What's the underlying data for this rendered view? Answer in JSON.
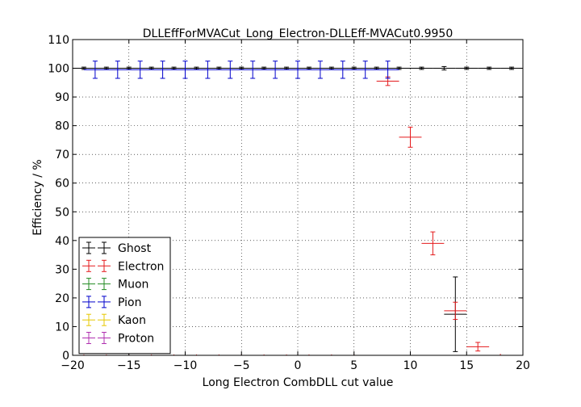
{
  "chart_data": {
    "type": "scatter",
    "title": "DLLEffForMVACut_Long_Electron-DLLEff-MVACut0.9950",
    "xlabel": "Long Electron CombDLL cut value",
    "ylabel": "Efficiency / %",
    "xlim": [
      -20,
      20
    ],
    "ylim": [
      0,
      110
    ],
    "xticks": [
      -20,
      -15,
      -10,
      -5,
      0,
      5,
      10,
      15,
      20
    ],
    "yticks": [
      0,
      10,
      20,
      30,
      40,
      50,
      60,
      70,
      80,
      90,
      100,
      110
    ],
    "grid": true,
    "legend_position": "lower-left",
    "series": [
      {
        "name": "Ghost",
        "color": "#000000",
        "points": [
          {
            "x": -19,
            "y": 100,
            "xerr": 1,
            "yerr": 0.4
          },
          {
            "x": -17,
            "y": 100,
            "xerr": 1,
            "yerr": 0.4
          },
          {
            "x": -15,
            "y": 100,
            "xerr": 1,
            "yerr": 0.4
          },
          {
            "x": -13,
            "y": 100,
            "xerr": 1,
            "yerr": 0.4
          },
          {
            "x": -11,
            "y": 100,
            "xerr": 1,
            "yerr": 0.4
          },
          {
            "x": -9,
            "y": 100,
            "xerr": 1,
            "yerr": 0.4
          },
          {
            "x": -7,
            "y": 100,
            "xerr": 1,
            "yerr": 0.4
          },
          {
            "x": -5,
            "y": 100,
            "xerr": 1,
            "yerr": 0.4
          },
          {
            "x": -3,
            "y": 100,
            "xerr": 1,
            "yerr": 0.4
          },
          {
            "x": -1,
            "y": 100,
            "xerr": 1,
            "yerr": 0.4
          },
          {
            "x": 1,
            "y": 100,
            "xerr": 1,
            "yerr": 0.4
          },
          {
            "x": 3,
            "y": 100,
            "xerr": 1,
            "yerr": 0.4
          },
          {
            "x": 5,
            "y": 100,
            "xerr": 1,
            "yerr": 0.4
          },
          {
            "x": 7,
            "y": 100,
            "xerr": 1,
            "yerr": 0.4
          },
          {
            "x": 9,
            "y": 100,
            "xerr": 1,
            "yerr": 0.4
          },
          {
            "x": 11,
            "y": 100,
            "xerr": 1,
            "yerr": 0.4
          },
          {
            "x": 13,
            "y": 100,
            "xerr": 1,
            "yerr": 0.6
          },
          {
            "x": 15,
            "y": 100,
            "xerr": 1,
            "yerr": 0.4
          },
          {
            "x": 17,
            "y": 100,
            "xerr": 1,
            "yerr": 0.4
          },
          {
            "x": 19,
            "y": 100,
            "xerr": 1,
            "yerr": 0.4
          },
          {
            "x": 14,
            "y": 14.3,
            "xerr": 1,
            "yerr": 13
          }
        ]
      },
      {
        "name": "Electron",
        "color": "#e41a1c",
        "points": [
          {
            "x": 8,
            "y": 95.5,
            "xerr": 1,
            "yerr": 1.5
          },
          {
            "x": 10,
            "y": 76,
            "xerr": 1,
            "yerr": 3.5
          },
          {
            "x": 12,
            "y": 39,
            "xerr": 1,
            "yerr": 4
          },
          {
            "x": 14,
            "y": 15.5,
            "xerr": 1,
            "yerr": 3
          },
          {
            "x": 16,
            "y": 3,
            "xerr": 1,
            "yerr": 1.5
          },
          {
            "x": 18,
            "y": 0,
            "xerr": 1,
            "yerr": 0.5
          },
          {
            "x": 20,
            "y": 0,
            "xerr": 1,
            "yerr": 0.5
          },
          {
            "x": -19,
            "y": 0,
            "xerr": 1,
            "yerr": 0.3
          },
          {
            "x": -17,
            "y": 0,
            "xerr": 1,
            "yerr": 0.3
          },
          {
            "x": -15,
            "y": 0,
            "xerr": 1,
            "yerr": 0.3
          },
          {
            "x": -13,
            "y": 0,
            "xerr": 1,
            "yerr": 0.3
          },
          {
            "x": -11,
            "y": 0,
            "xerr": 1,
            "yerr": 0.3
          },
          {
            "x": -9,
            "y": 0,
            "xerr": 1,
            "yerr": 0.3
          },
          {
            "x": -7,
            "y": 0,
            "xerr": 1,
            "yerr": 0.3
          },
          {
            "x": -5,
            "y": 0,
            "xerr": 1,
            "yerr": 0.3
          },
          {
            "x": -3,
            "y": 0,
            "xerr": 1,
            "yerr": 0.3
          },
          {
            "x": -1,
            "y": 0,
            "xerr": 1,
            "yerr": 0.3
          },
          {
            "x": 1,
            "y": 0,
            "xerr": 1,
            "yerr": 0.3
          },
          {
            "x": 3,
            "y": 0,
            "xerr": 1,
            "yerr": 0.3
          },
          {
            "x": 5,
            "y": 0,
            "xerr": 1,
            "yerr": 0.3
          }
        ]
      },
      {
        "name": "Muon",
        "color": "#228B22",
        "points": []
      },
      {
        "name": "Pion",
        "color": "#0000cc",
        "points": [
          {
            "x": -18,
            "y": 99.5,
            "xerr": 1,
            "yerr": 3
          },
          {
            "x": -16,
            "y": 99.5,
            "xerr": 1,
            "yerr": 3
          },
          {
            "x": -14,
            "y": 99.5,
            "xerr": 1,
            "yerr": 3
          },
          {
            "x": -12,
            "y": 99.5,
            "xerr": 1,
            "yerr": 3
          },
          {
            "x": -10,
            "y": 99.5,
            "xerr": 1,
            "yerr": 3
          },
          {
            "x": -8,
            "y": 99.5,
            "xerr": 1,
            "yerr": 3
          },
          {
            "x": -6,
            "y": 99.5,
            "xerr": 1,
            "yerr": 3
          },
          {
            "x": -4,
            "y": 99.5,
            "xerr": 1,
            "yerr": 3
          },
          {
            "x": -2,
            "y": 99.5,
            "xerr": 1,
            "yerr": 3
          },
          {
            "x": 0,
            "y": 99.5,
            "xerr": 1,
            "yerr": 3
          },
          {
            "x": 2,
            "y": 99.5,
            "xerr": 1,
            "yerr": 3
          },
          {
            "x": 4,
            "y": 99.5,
            "xerr": 1,
            "yerr": 3
          },
          {
            "x": 6,
            "y": 99.5,
            "xerr": 1,
            "yerr": 3
          },
          {
            "x": 8,
            "y": 99.5,
            "xerr": 1,
            "yerr": 3
          }
        ]
      },
      {
        "name": "Kaon",
        "color": "#e6c800",
        "points": []
      },
      {
        "name": "Proton",
        "color": "#b030b0",
        "points": []
      }
    ]
  }
}
